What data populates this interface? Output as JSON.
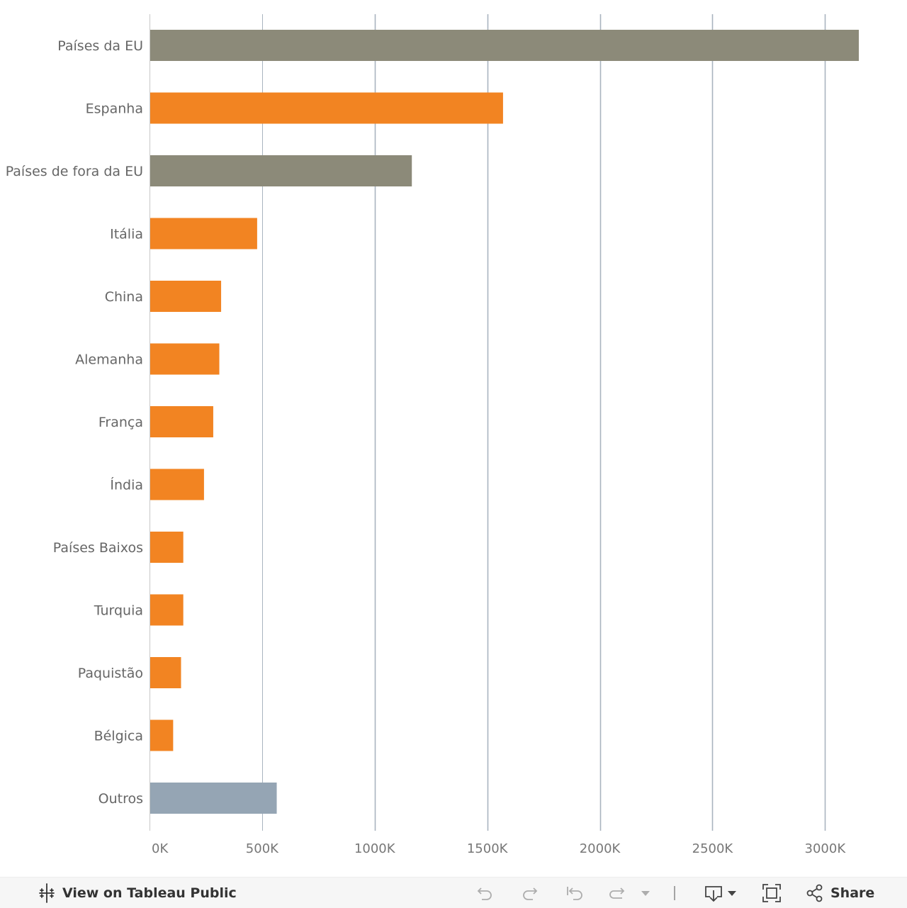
{
  "chart_data": {
    "type": "bar",
    "orientation": "horizontal",
    "categories": [
      "Países da EU",
      "Espanha",
      "Países de fora da EU",
      "Itália",
      "China",
      "Alemanha",
      "França",
      "Índia",
      "Países Baixos",
      "Turquia",
      "Paquistão",
      "Bélgica",
      "Outros"
    ],
    "values": [
      3150000,
      1570000,
      1165000,
      478000,
      318000,
      310000,
      283000,
      242000,
      150000,
      150000,
      140000,
      105000,
      565000
    ],
    "bar_colors": [
      "#8c8a79",
      "#f28422",
      "#8c8a79",
      "#f28422",
      "#f28422",
      "#f28422",
      "#f28422",
      "#f28422",
      "#f28422",
      "#f28422",
      "#f28422",
      "#f28422",
      "#95a5b4"
    ],
    "x_ticks": [
      0,
      500000,
      1000000,
      1500000,
      2000000,
      2500000,
      3000000
    ],
    "x_tick_labels": [
      "0K",
      "500K",
      "1000K",
      "1500K",
      "2000K",
      "2500K",
      "3000K"
    ],
    "xlim": [
      0,
      3150000
    ],
    "grid": true,
    "title": "",
    "xlabel": "",
    "ylabel": ""
  },
  "colors": {
    "gridline": "#a9b4bf",
    "axis": "#c8c8c8",
    "label": "#666666"
  },
  "toolbar": {
    "view_label": "View on Tableau Public",
    "share_label": "Share"
  }
}
